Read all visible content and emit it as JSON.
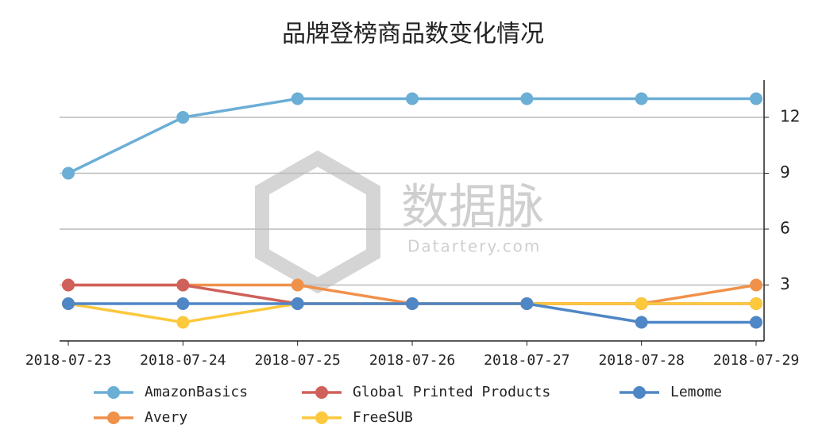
{
  "chart_data": {
    "type": "line",
    "title": "品牌登榜商品数变化情况",
    "watermark": {
      "brand": "数据脉",
      "site": "Datartery.com"
    },
    "x": [
      "2018-07-23",
      "2018-07-24",
      "2018-07-25",
      "2018-07-26",
      "2018-07-27",
      "2018-07-28",
      "2018-07-29"
    ],
    "series": [
      {
        "name": "AmazonBasics",
        "color": "#6baed6",
        "values": [
          9,
          12,
          13,
          13,
          13,
          13,
          13
        ]
      },
      {
        "name": "Avery",
        "color": "#f0914a",
        "values": [
          3,
          3,
          3,
          2,
          2,
          2,
          3
        ]
      },
      {
        "name": "Global Printed Products",
        "color": "#d0605a",
        "values": [
          3,
          3,
          2,
          2,
          2,
          2,
          2
        ]
      },
      {
        "name": "FreeSUB",
        "color": "#fcc83c",
        "values": [
          2,
          1,
          2,
          2,
          2,
          2,
          2
        ]
      },
      {
        "name": "Lemome",
        "color": "#4f86c6",
        "values": [
          2,
          2,
          2,
          2,
          2,
          1,
          1
        ]
      }
    ],
    "ylim": [
      0,
      14
    ],
    "yticks": [
      3,
      6,
      9,
      12
    ],
    "grid": true,
    "legend": "bottom"
  }
}
